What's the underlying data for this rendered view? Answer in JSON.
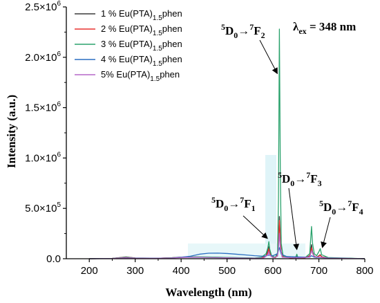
{
  "chart_data": {
    "type": "line",
    "xlabel": "Wavelength (nm)",
    "ylabel": "Intensity (a.u.)",
    "xlim": [
      150,
      800
    ],
    "ylim": [
      0,
      2500000
    ],
    "x_ticks": [
      "200",
      "300",
      "400",
      "500",
      "600",
      "700",
      "800"
    ],
    "x_tick_values": [
      200,
      300,
      400,
      500,
      600,
      700,
      800
    ],
    "y_ticks": [
      {
        "value": 0,
        "mant": "0.0",
        "exp": ""
      },
      {
        "value": 500000,
        "mant": "5.0×10",
        "exp": "5"
      },
      {
        "value": 1000000,
        "mant": "1.0×10",
        "exp": "6"
      },
      {
        "value": 1500000,
        "mant": "1.5×10",
        "exp": "6"
      },
      {
        "value": 2000000,
        "mant": "2.0×10",
        "exp": "6"
      },
      {
        "value": 2500000,
        "mant": "2.5×10",
        "exp": "6"
      }
    ],
    "grid": false,
    "legend_position": "top-left",
    "excitation_label": {
      "lambda": "λ",
      "sub": "ex",
      "text": " = 348 nm"
    },
    "annotations": [
      {
        "id": "f2",
        "sup": "5",
        "base": "D",
        "sub": "0",
        "arrow": "→",
        "sup2": "7",
        "final": "F",
        "sub2": "2",
        "x": 614,
        "y": 2250000
      },
      {
        "id": "f3",
        "sup": "5",
        "base": "D",
        "sub": "0",
        "arrow": "→",
        "sup2": "7",
        "final": "F",
        "sub2": "3",
        "x": 652,
        "y": 50000
      },
      {
        "id": "f1",
        "sup": "5",
        "base": "D",
        "sub": "0",
        "arrow": "→",
        "sup2": "7",
        "final": "F",
        "sub2": "1",
        "x": 591,
        "y": 160000
      },
      {
        "id": "f4",
        "sup": "5",
        "base": "D",
        "sub": "0",
        "arrow": "→",
        "sup2": "7",
        "final": "F",
        "sub2": "4",
        "x": 703,
        "y": 70000
      }
    ],
    "series": [
      {
        "name_pre": "1 % Eu(PTA)",
        "name_sub": "1.5",
        "name_post": "phen",
        "color": "#3a3a3a",
        "x": [
          200,
          250,
          280,
          300,
          350,
          380,
          400,
          430,
          460,
          500,
          540,
          560,
          575,
          585,
          589,
          591,
          593,
          597,
          605,
          610,
          612,
          614,
          616,
          618,
          622,
          640,
          650,
          652,
          654,
          670,
          680,
          684,
          686,
          690,
          695,
          700,
          703,
          706,
          720,
          750,
          800
        ],
        "y": [
          0,
          3000,
          18000,
          8000,
          5000,
          10000,
          16000,
          18000,
          16000,
          12000,
          8000,
          6000,
          10000,
          30000,
          80000,
          120000,
          70000,
          25000,
          12000,
          40000,
          180000,
          420000,
          220000,
          70000,
          20000,
          8000,
          15000,
          35000,
          12000,
          10000,
          30000,
          140000,
          70000,
          25000,
          15000,
          30000,
          40000,
          20000,
          8000,
          5000,
          0
        ]
      },
      {
        "name_pre": "2 % Eu(PTA)",
        "name_sub": "1.5",
        "name_post": "phen",
        "color": "#e8312f",
        "x": [
          200,
          250,
          280,
          300,
          350,
          380,
          400,
          430,
          460,
          500,
          540,
          560,
          575,
          585,
          589,
          591,
          593,
          597,
          605,
          610,
          612,
          614,
          616,
          618,
          622,
          640,
          650,
          652,
          654,
          670,
          680,
          684,
          686,
          690,
          695,
          700,
          703,
          706,
          720,
          750,
          800
        ],
        "y": [
          0,
          3000,
          15000,
          7000,
          5000,
          9000,
          14000,
          16000,
          14000,
          10000,
          7000,
          5000,
          9000,
          25000,
          60000,
          100000,
          55000,
          20000,
          10000,
          35000,
          150000,
          380000,
          190000,
          60000,
          18000,
          7000,
          12000,
          30000,
          10000,
          9000,
          25000,
          110000,
          55000,
          20000,
          12000,
          25000,
          35000,
          16000,
          7000,
          4000,
          0
        ]
      },
      {
        "name_pre": "3 % Eu(PTA)",
        "name_sub": "1.5",
        "name_post": "phen",
        "color": "#2aa26c",
        "x": [
          200,
          250,
          280,
          300,
          350,
          380,
          400,
          430,
          460,
          500,
          540,
          560,
          575,
          585,
          589,
          591,
          593,
          597,
          605,
          610,
          612,
          614,
          616,
          618,
          622,
          640,
          650,
          652,
          654,
          670,
          680,
          684,
          686,
          690,
          695,
          700,
          703,
          706,
          720,
          750,
          800
        ],
        "y": [
          0,
          3000,
          14000,
          7000,
          5000,
          9000,
          15000,
          18000,
          17000,
          13000,
          9000,
          7000,
          15000,
          50000,
          110000,
          170000,
          95000,
          30000,
          15000,
          60000,
          600000,
          2280000,
          900000,
          150000,
          30000,
          10000,
          20000,
          45000,
          15000,
          12000,
          50000,
          320000,
          160000,
          50000,
          30000,
          70000,
          100000,
          40000,
          12000,
          8000,
          0
        ]
      },
      {
        "name_pre": "4 % Eu(PTA)",
        "name_sub": "1.5",
        "name_post": "phen",
        "color": "#2a6fc2",
        "x": [
          200,
          250,
          280,
          300,
          350,
          380,
          400,
          420,
          440,
          460,
          480,
          500,
          520,
          540,
          560,
          580,
          590,
          600,
          610,
          614,
          618,
          630,
          650,
          680,
          684,
          690,
          700,
          720,
          750,
          800
        ],
        "y": [
          0,
          2000,
          8000,
          6000,
          5000,
          8000,
          15000,
          25000,
          45000,
          55000,
          56000,
          52000,
          45000,
          38000,
          30000,
          25000,
          35000,
          30000,
          50000,
          110000,
          45000,
          22000,
          18000,
          15000,
          30000,
          15000,
          12000,
          8000,
          5000,
          0
        ]
      },
      {
        "name_pre": "5%  Eu(PTA)",
        "name_sub": "1.5",
        "name_post": "phen",
        "color": "#b566c9",
        "x": [
          200,
          250,
          280,
          300,
          350,
          380,
          400,
          430,
          460,
          500,
          540,
          560,
          580,
          589,
          591,
          593,
          600,
          610,
          612,
          614,
          616,
          620,
          650,
          680,
          684,
          690,
          700,
          720,
          750,
          800
        ],
        "y": [
          0,
          2000,
          10000,
          5000,
          4000,
          7000,
          12000,
          14000,
          12000,
          9000,
          6000,
          5000,
          8000,
          40000,
          70000,
          35000,
          10000,
          25000,
          100000,
          250000,
          110000,
          15000,
          8000,
          15000,
          80000,
          20000,
          15000,
          6000,
          4000,
          0
        ]
      }
    ]
  }
}
